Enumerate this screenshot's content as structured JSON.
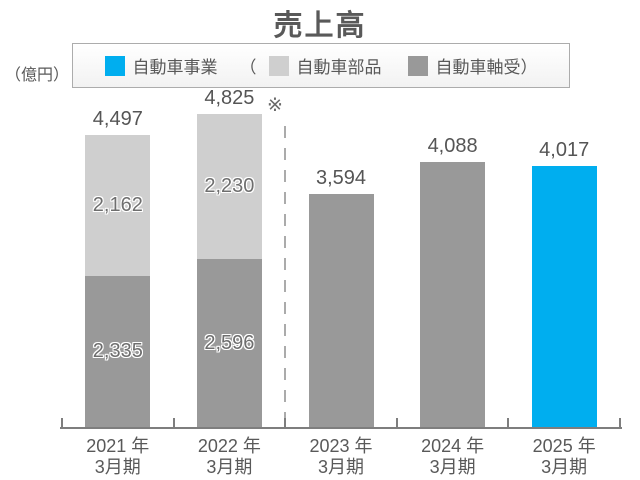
{
  "title": "売上高",
  "unit_label": "（億円）",
  "legend": {
    "paren_open": "（",
    "paren_close": "）",
    "items": [
      {
        "label": "自動車事業",
        "color": "#00AEEF"
      },
      {
        "label": "自動車部品",
        "color": "#CFCFCF"
      },
      {
        "label": "自動車軸受",
        "color": "#999999"
      }
    ]
  },
  "annotation_mark": "※",
  "chart_data": {
    "type": "bar",
    "stacked": true,
    "title": "売上高",
    "ylabel": "（億円）",
    "ylim": [
      0,
      5000
    ],
    "grid": false,
    "legend_position": "top",
    "divider_after_category_index": 1,
    "categories": [
      "2021年3月期",
      "2022年3月期",
      "2023年3月期",
      "2024年3月期",
      "2025年3月期"
    ],
    "bars": [
      {
        "category_lines": [
          "2021 年",
          "3月期"
        ],
        "total": 4497,
        "total_label": "4,497",
        "segments": [
          {
            "series": "自動車軸受",
            "value": 2335,
            "label": "2,335",
            "color": "#999999"
          },
          {
            "series": "自動車部品",
            "value": 2162,
            "label": "2,162",
            "color": "#CFCFCF"
          }
        ]
      },
      {
        "category_lines": [
          "2022 年",
          "3月期"
        ],
        "total": 4825,
        "total_label": "4,825",
        "segments": [
          {
            "series": "自動車軸受",
            "value": 2596,
            "label": "2,596",
            "color": "#999999"
          },
          {
            "series": "自動車部品",
            "value": 2230,
            "label": "2,230",
            "color": "#CFCFCF"
          }
        ]
      },
      {
        "category_lines": [
          "2023 年",
          "3月期"
        ],
        "total": 3594,
        "total_label": "3,594",
        "segments": [
          {
            "series": "自動車軸受",
            "value": 3594,
            "label": "",
            "color": "#999999"
          }
        ]
      },
      {
        "category_lines": [
          "2024 年",
          "3月期"
        ],
        "total": 4088,
        "total_label": "4,088",
        "segments": [
          {
            "series": "自動車軸受",
            "value": 4088,
            "label": "",
            "color": "#999999"
          }
        ]
      },
      {
        "category_lines": [
          "2025 年",
          "3月期"
        ],
        "total": 4017,
        "total_label": "4,017",
        "segments": [
          {
            "series": "自動車事業",
            "value": 4017,
            "label": "",
            "color": "#00AEEF"
          }
        ]
      }
    ],
    "colors": {
      "accent_cyan": "#00AEEF",
      "light_gray": "#CFCFCF",
      "dark_gray": "#999999",
      "text": "#595959",
      "axis": "#7E7E7E"
    }
  }
}
